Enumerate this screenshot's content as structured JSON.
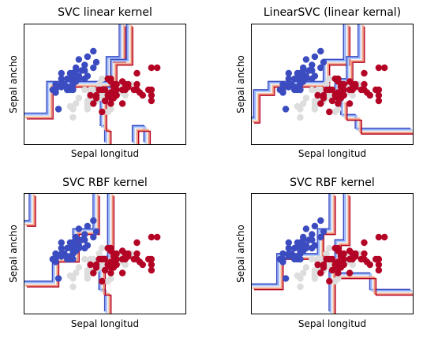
{
  "chart_data": [
    {
      "type": "scatter",
      "title": "SVC linear kernel",
      "xlabel": "Sepal longitud",
      "ylabel": "Sepal ancho",
      "xlim": [
        3.3,
        8.9
      ],
      "ylim": [
        1.0,
        5.4
      ],
      "grid": false,
      "boundaries": [
        {
          "class_pair": "blue/gray",
          "points": [
            [
              3.3,
              2.05
            ],
            [
              4.2,
              2.05
            ],
            [
              4.2,
              3.2
            ],
            [
              6.25,
              3.2
            ],
            [
              6.25,
              4.1
            ],
            [
              6.7,
              4.1
            ],
            [
              6.7,
              5.4
            ]
          ]
        },
        {
          "class_pair": "gray/red",
          "points": [
            [
              6.2,
              1.0
            ],
            [
              6.2,
              1.6
            ],
            [
              6.05,
              1.6
            ],
            [
              6.05,
              3.0
            ],
            [
              6.4,
              3.0
            ],
            [
              6.4,
              4.0
            ],
            [
              6.95,
              4.0
            ],
            [
              6.95,
              5.4
            ]
          ]
        },
        {
          "class_pair": "gray/red (lower)",
          "points": [
            [
              7.15,
              1.0
            ],
            [
              7.15,
              1.6
            ],
            [
              7.55,
              1.6
            ],
            [
              7.55,
              1.0
            ]
          ]
        }
      ]
    },
    {
      "type": "scatter",
      "title": "LinearSVC (linear kernal)",
      "xlabel": "Sepal longitud",
      "ylabel": "Sepal ancho",
      "xlim": [
        3.3,
        8.9
      ],
      "ylim": [
        1.0,
        5.4
      ],
      "grid": false,
      "boundaries": [
        {
          "class_pair": "blue/gray",
          "points": [
            [
              3.3,
              1.9
            ],
            [
              3.5,
              1.9
            ],
            [
              3.5,
              2.9
            ],
            [
              4.0,
              2.9
            ],
            [
              4.0,
              3.2
            ],
            [
              5.9,
              3.2
            ],
            [
              5.9,
              4.0
            ],
            [
              6.6,
              4.0
            ],
            [
              6.6,
              5.4
            ]
          ]
        },
        {
          "class_pair": "gray/red",
          "points": [
            [
              6.3,
              2.6
            ],
            [
              6.3,
              3.3
            ],
            [
              6.7,
              3.3
            ],
            [
              6.7,
              4.1
            ],
            [
              7.1,
              4.1
            ],
            [
              7.1,
              5.4
            ]
          ]
        },
        {
          "class_pair": "gray/red (lower)",
          "points": [
            [
              6.5,
              2.6
            ],
            [
              6.5,
              2.0
            ],
            [
              7.0,
              2.0
            ],
            [
              7.0,
              1.5
            ],
            [
              8.9,
              1.5
            ]
          ]
        }
      ]
    },
    {
      "type": "scatter",
      "title": "SVC RBF kernel",
      "xlabel": "Sepal longitud",
      "ylabel": "Sepal ancho",
      "xlim": [
        3.3,
        8.9
      ],
      "ylim": [
        1.0,
        5.4
      ],
      "grid": false,
      "boundaries": [
        {
          "class_pair": "blue/red (left)",
          "points": [
            [
              3.3,
              4.3
            ],
            [
              3.6,
              4.3
            ],
            [
              3.6,
              5.4
            ]
          ]
        },
        {
          "class_pair": "blue/gray",
          "points": [
            [
              3.3,
              2.1
            ],
            [
              4.4,
              2.1
            ],
            [
              4.4,
              3.0
            ],
            [
              5.1,
              3.0
            ],
            [
              5.1,
              4.0
            ],
            [
              5.8,
              4.0
            ],
            [
              5.8,
              5.4
            ]
          ]
        },
        {
          "class_pair": "gray/red",
          "points": [
            [
              6.2,
              1.0
            ],
            [
              6.2,
              1.8
            ],
            [
              6.0,
              1.8
            ],
            [
              6.0,
              3.0
            ],
            [
              6.3,
              3.0
            ],
            [
              6.3,
              5.4
            ]
          ]
        }
      ]
    },
    {
      "type": "scatter",
      "title": "SVC RBF kernel",
      "xlabel": "Sepal longitud",
      "ylabel": "Sepal ancho",
      "xlim": [
        3.3,
        8.9
      ],
      "ylim": [
        1.0,
        5.4
      ],
      "grid": false,
      "boundaries": [
        {
          "class_pair": "blue/gray",
          "points": [
            [
              3.3,
              2.0
            ],
            [
              4.3,
              2.0
            ],
            [
              4.3,
              3.1
            ],
            [
              5.7,
              3.1
            ],
            [
              5.7,
              4.0
            ],
            [
              6.1,
              4.0
            ],
            [
              6.1,
              5.4
            ]
          ]
        },
        {
          "class_pair": "gray/red",
          "points": [
            [
              6.1,
              1.0
            ],
            [
              6.1,
              2.8
            ],
            [
              6.3,
              2.8
            ],
            [
              6.3,
              3.6
            ],
            [
              6.6,
              3.6
            ],
            [
              6.6,
              5.4
            ]
          ]
        },
        {
          "class_pair": "gray/red (lower)",
          "points": [
            [
              6.3,
              2.4
            ],
            [
              7.5,
              2.4
            ],
            [
              7.5,
              1.8
            ],
            [
              8.9,
              1.8
            ]
          ]
        }
      ]
    }
  ],
  "points": {
    "setosa": [
      [
        4.3,
        3.0
      ],
      [
        4.4,
        2.9
      ],
      [
        4.4,
        3.0
      ],
      [
        4.4,
        3.2
      ],
      [
        4.5,
        2.3
      ],
      [
        4.6,
        3.1
      ],
      [
        4.6,
        3.4
      ],
      [
        4.6,
        3.6
      ],
      [
        4.6,
        3.2
      ],
      [
        4.7,
        3.2
      ],
      [
        4.8,
        3.4
      ],
      [
        4.8,
        3.0
      ],
      [
        4.8,
        3.1
      ],
      [
        4.9,
        3.0
      ],
      [
        4.9,
        3.1
      ],
      [
        4.9,
        3.6
      ],
      [
        5.0,
        3.6
      ],
      [
        5.0,
        3.4
      ],
      [
        5.0,
        3.0
      ],
      [
        5.0,
        3.3
      ],
      [
        5.0,
        3.5
      ],
      [
        5.0,
        3.2
      ],
      [
        5.1,
        3.5
      ],
      [
        5.1,
        3.8
      ],
      [
        5.1,
        3.7
      ],
      [
        5.1,
        3.3
      ],
      [
        5.1,
        3.4
      ],
      [
        5.2,
        3.5
      ],
      [
        5.2,
        3.4
      ],
      [
        5.2,
        4.1
      ],
      [
        5.3,
        3.7
      ],
      [
        5.4,
        3.9
      ],
      [
        5.4,
        3.7
      ],
      [
        5.4,
        3.4
      ],
      [
        5.5,
        4.2
      ],
      [
        5.5,
        3.5
      ],
      [
        5.7,
        4.4
      ],
      [
        5.7,
        3.8
      ],
      [
        5.8,
        4.0
      ]
    ],
    "versicolor": [
      [
        4.9,
        2.4
      ],
      [
        5.0,
        2.0
      ],
      [
        5.0,
        2.3
      ],
      [
        5.1,
        2.5
      ],
      [
        5.2,
        2.7
      ],
      [
        5.4,
        3.0
      ],
      [
        5.5,
        2.3
      ],
      [
        5.5,
        2.4
      ],
      [
        5.5,
        2.5
      ],
      [
        5.5,
        2.6
      ],
      [
        5.6,
        2.9
      ],
      [
        5.6,
        3.0
      ],
      [
        5.6,
        2.5
      ],
      [
        5.6,
        2.7
      ],
      [
        5.7,
        2.8
      ],
      [
        5.7,
        2.6
      ],
      [
        5.7,
        3.0
      ],
      [
        5.7,
        2.9
      ],
      [
        5.8,
        2.7
      ],
      [
        5.8,
        2.6
      ],
      [
        5.9,
        3.0
      ],
      [
        5.9,
        3.2
      ],
      [
        6.0,
        2.2
      ],
      [
        6.0,
        2.9
      ],
      [
        6.0,
        2.7
      ],
      [
        6.0,
        3.4
      ],
      [
        6.1,
        2.9
      ],
      [
        6.1,
        2.8
      ],
      [
        6.1,
        3.0
      ],
      [
        6.2,
        2.2
      ],
      [
        6.2,
        2.9
      ],
      [
        6.3,
        3.3
      ],
      [
        6.3,
        2.5
      ],
      [
        6.3,
        2.3
      ],
      [
        6.4,
        3.2
      ],
      [
        6.4,
        2.9
      ],
      [
        6.5,
        2.8
      ],
      [
        6.6,
        2.9
      ],
      [
        6.6,
        3.0
      ],
      [
        6.7,
        3.1
      ],
      [
        6.7,
        3.0
      ],
      [
        6.8,
        2.8
      ],
      [
        6.9,
        3.1
      ],
      [
        7.0,
        3.2
      ]
    ],
    "virginica": [
      [
        5.6,
        2.8
      ],
      [
        5.7,
        2.5
      ],
      [
        5.8,
        2.7
      ],
      [
        5.8,
        2.8
      ],
      [
        5.9,
        3.0
      ],
      [
        6.0,
        2.2
      ],
      [
        6.0,
        3.0
      ],
      [
        6.1,
        3.0
      ],
      [
        6.1,
        2.6
      ],
      [
        6.2,
        2.8
      ],
      [
        6.2,
        3.4
      ],
      [
        6.3,
        3.3
      ],
      [
        6.3,
        2.9
      ],
      [
        6.3,
        2.5
      ],
      [
        6.3,
        2.7
      ],
      [
        6.3,
        3.4
      ],
      [
        6.4,
        2.7
      ],
      [
        6.4,
        3.2
      ],
      [
        6.4,
        2.8
      ],
      [
        6.4,
        3.1
      ],
      [
        6.5,
        3.0
      ],
      [
        6.5,
        3.2
      ],
      [
        6.5,
        2.8
      ],
      [
        6.7,
        2.5
      ],
      [
        6.7,
        3.3
      ],
      [
        6.7,
        3.0
      ],
      [
        6.8,
        3.0
      ],
      [
        6.8,
        3.2
      ],
      [
        6.9,
        3.2
      ],
      [
        6.9,
        3.1
      ],
      [
        7.1,
        3.0
      ],
      [
        7.2,
        3.6
      ],
      [
        7.2,
        3.2
      ],
      [
        7.2,
        3.0
      ],
      [
        7.3,
        2.9
      ],
      [
        7.4,
        2.8
      ],
      [
        7.6,
        3.0
      ],
      [
        7.7,
        3.8
      ],
      [
        7.7,
        2.6
      ],
      [
        7.7,
        2.8
      ],
      [
        7.7,
        3.0
      ],
      [
        7.9,
        3.8
      ]
    ]
  },
  "colors": {
    "setosa": "#3b4cc0",
    "versicolor": "#dddddd",
    "virginica": "#b40426",
    "contour": [
      "#3b4cc0",
      "#7b9ff9",
      "#c0d4f5",
      "#f2cbb7",
      "#ee8468",
      "#b40426"
    ]
  }
}
